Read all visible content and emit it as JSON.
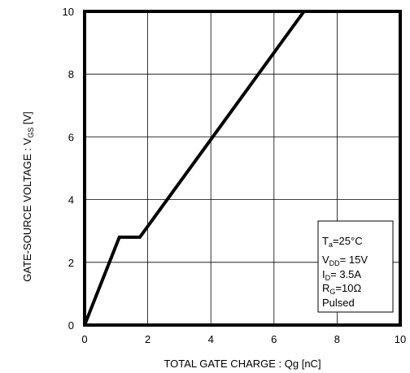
{
  "chart_data": {
    "type": "line",
    "xlabel": "TOTAL GATE CHARGE : Qg  [nC]",
    "ylabel": {
      "main": "GATE-SOURCE VOLTAGE : V",
      "sub": "GS",
      "unit": " [V]"
    },
    "xlim": [
      0,
      10
    ],
    "ylim": [
      0,
      10
    ],
    "x_ticks": [
      "0",
      "2",
      "4",
      "6",
      "8",
      "10"
    ],
    "y_ticks": [
      "0",
      "2",
      "4",
      "6",
      "8",
      "10"
    ],
    "grid": true,
    "series": [
      {
        "x": [
          0,
          1.1,
          1.75,
          6.95
        ],
        "y": [
          0,
          2.8,
          2.8,
          10
        ]
      }
    ],
    "conditions": {
      "ta": {
        "main": "T",
        "sub": "a",
        "rest": "=25°C"
      },
      "vdd": {
        "main": "V",
        "sub": "DD",
        "rest": "= 15V"
      },
      "id": {
        "main": "I",
        "sub": "D",
        "rest": "= 3.5A"
      },
      "rg": {
        "main": "R",
        "sub": "G",
        "rest": "=10Ω"
      },
      "pulsed": "Pulsed"
    }
  }
}
